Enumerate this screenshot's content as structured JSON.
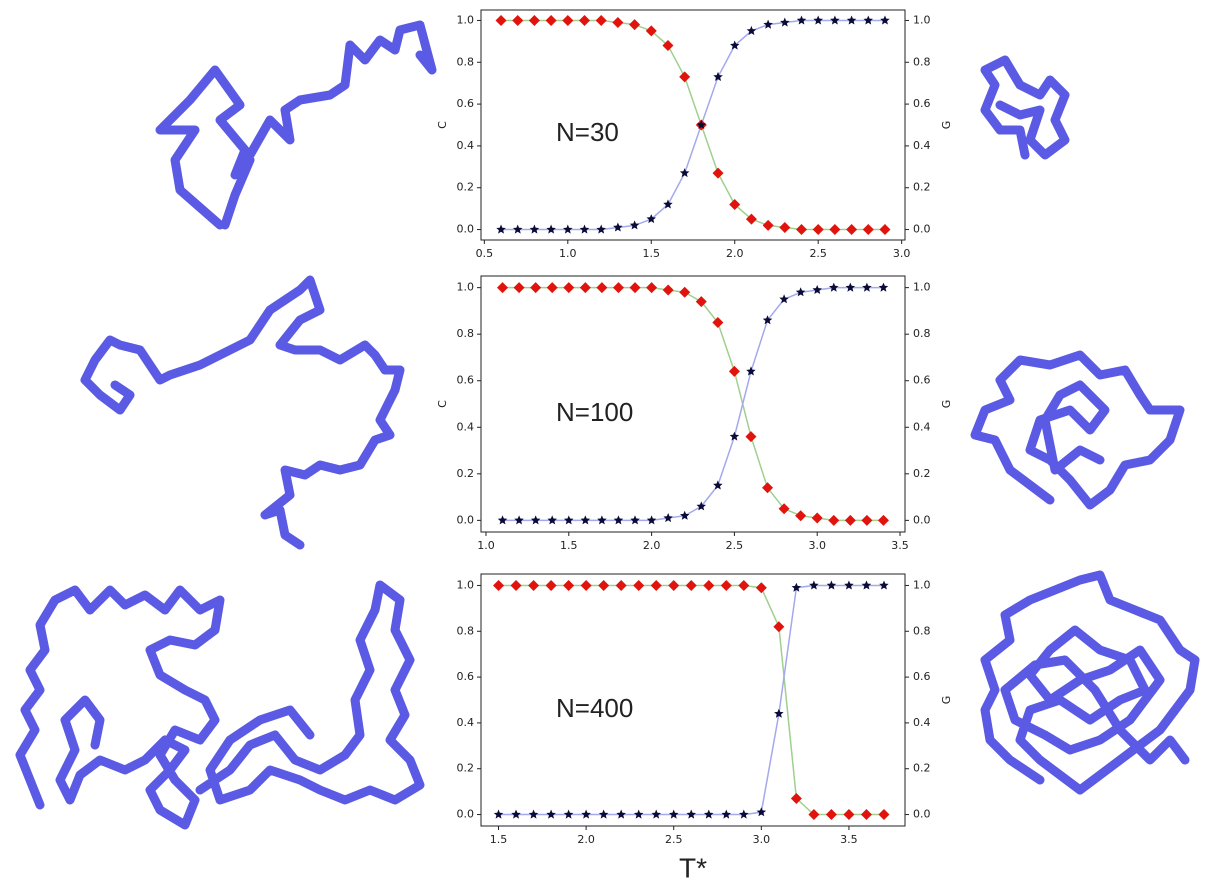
{
  "chart_data": [
    {
      "type": "line",
      "annotation": "N=30",
      "ylabel": "C",
      "y2label": "G",
      "x": [
        0.6,
        0.7,
        0.8,
        0.9,
        1.0,
        1.1,
        1.2,
        1.3,
        1.4,
        1.5,
        1.6,
        1.7,
        1.8,
        1.9,
        2.0,
        2.1,
        2.2,
        2.3,
        2.4,
        2.5,
        2.6,
        2.7,
        2.8,
        2.9
      ],
      "series": [
        {
          "name": "C",
          "color": "#e0140c",
          "line_color": "#9fd08f",
          "marker": "diamond",
          "axis": "y",
          "values": [
            1.0,
            1.0,
            1.0,
            1.0,
            1.0,
            1.0,
            1.0,
            0.99,
            0.98,
            0.95,
            0.88,
            0.73,
            0.5,
            0.27,
            0.12,
            0.05,
            0.02,
            0.01,
            0.0,
            0.0,
            0.0,
            0.0,
            0.0,
            0.0
          ]
        },
        {
          "name": "G",
          "color": "#0b0b38",
          "line_color": "#a3a9ec",
          "marker": "star",
          "axis": "y2",
          "values": [
            0.0,
            0.0,
            0.0,
            0.0,
            0.0,
            0.0,
            0.0,
            0.01,
            0.02,
            0.05,
            0.12,
            0.27,
            0.5,
            0.73,
            0.88,
            0.95,
            0.98,
            0.99,
            1.0,
            1.0,
            1.0,
            1.0,
            1.0,
            1.0
          ]
        }
      ],
      "xlim": [
        0.48,
        3.02
      ],
      "xticks": [
        0.5,
        {
          "value": 1,
          "label": "1.0"
        },
        1.5,
        {
          "value": 2,
          "label": "2.0"
        },
        2.5,
        {
          "value": 3,
          "label": "3.0"
        }
      ],
      "ylim": [
        -0.05,
        1.05
      ],
      "yticks": [
        {
          "value": 0,
          "label": "0.0"
        },
        0.2,
        0.4,
        0.6,
        0.8,
        {
          "value": 1,
          "label": "1.0"
        }
      ],
      "y2lim": [
        -0.05,
        1.05
      ],
      "y2ticks": [
        {
          "value": 0,
          "label": "0.0"
        },
        0.2,
        0.4,
        0.6,
        0.8,
        {
          "value": 1,
          "label": "1.0"
        }
      ]
    },
    {
      "type": "line",
      "annotation": "N=100",
      "ylabel": "C",
      "y2label": "G",
      "x": [
        1.1,
        1.2,
        1.3,
        1.4,
        1.5,
        1.6,
        1.7,
        1.8,
        1.9,
        2.0,
        2.1,
        2.2,
        2.3,
        2.4,
        2.5,
        2.6,
        2.7,
        2.8,
        2.9,
        3.0,
        3.1,
        3.2,
        3.3,
        3.4
      ],
      "series": [
        {
          "name": "C",
          "color": "#e0140c",
          "line_color": "#9fd08f",
          "marker": "diamond",
          "axis": "y",
          "values": [
            1.0,
            1.0,
            1.0,
            1.0,
            1.0,
            1.0,
            1.0,
            1.0,
            1.0,
            1.0,
            0.99,
            0.98,
            0.94,
            0.85,
            0.64,
            0.36,
            0.14,
            0.05,
            0.02,
            0.01,
            0.0,
            0.0,
            0.0,
            0.0
          ]
        },
        {
          "name": "G",
          "color": "#0b0b38",
          "line_color": "#a3a9ec",
          "marker": "star",
          "axis": "y2",
          "values": [
            0.0,
            0.0,
            0.0,
            0.0,
            0.0,
            0.0,
            0.0,
            0.0,
            0.0,
            0.0,
            0.01,
            0.02,
            0.06,
            0.15,
            0.36,
            0.64,
            0.86,
            0.95,
            0.98,
            0.99,
            1.0,
            1.0,
            1.0,
            1.0
          ]
        }
      ],
      "xlim": [
        0.97,
        3.53
      ],
      "xticks": [
        {
          "value": 1,
          "label": "1.0"
        },
        1.5,
        {
          "value": 2,
          "label": "2.0"
        },
        2.5,
        {
          "value": 3,
          "label": "3.0"
        },
        3.5
      ],
      "ylim": [
        -0.05,
        1.05
      ],
      "yticks": [
        {
          "value": 0,
          "label": "0.0"
        },
        0.2,
        0.4,
        0.6,
        0.8,
        {
          "value": 1,
          "label": "1.0"
        }
      ],
      "y2lim": [
        -0.05,
        1.05
      ],
      "y2ticks": [
        {
          "value": 0,
          "label": "0.0"
        },
        0.2,
        0.4,
        0.6,
        0.8,
        {
          "value": 1,
          "label": "1.0"
        }
      ]
    },
    {
      "type": "line",
      "annotation": "N=400",
      "y2label": "G",
      "xlabel": "T*",
      "x": [
        1.5,
        1.6,
        1.7,
        1.8,
        1.9,
        2.0,
        2.1,
        2.2,
        2.3,
        2.4,
        2.5,
        2.6,
        2.7,
        2.8,
        2.9,
        3.0,
        3.1,
        3.2,
        3.3,
        3.4,
        3.5,
        3.6,
        3.7
      ],
      "series": [
        {
          "name": "C",
          "color": "#e0140c",
          "line_color": "#9fd08f",
          "marker": "diamond",
          "axis": "y",
          "values": [
            1.0,
            1.0,
            1.0,
            1.0,
            1.0,
            1.0,
            1.0,
            1.0,
            1.0,
            1.0,
            1.0,
            1.0,
            1.0,
            1.0,
            1.0,
            0.99,
            0.82,
            0.07,
            0.0,
            0.0,
            0.0,
            0.0,
            0.0
          ]
        },
        {
          "name": "G",
          "color": "#0b0b38",
          "line_color": "#a3a9ec",
          "marker": "star",
          "axis": "y2",
          "values": [
            0.0,
            0.0,
            0.0,
            0.0,
            0.0,
            0.0,
            0.0,
            0.0,
            0.0,
            0.0,
            0.0,
            0.0,
            0.0,
            0.0,
            0.0,
            0.01,
            0.44,
            0.99,
            1.0,
            1.0,
            1.0,
            1.0,
            1.0
          ]
        }
      ],
      "xlim": [
        1.4,
        3.82
      ],
      "xticks": [
        1.5,
        {
          "value": 2,
          "label": "2.0"
        },
        2.5,
        {
          "value": 3,
          "label": "3.0"
        },
        3.5
      ],
      "ylim": [
        -0.05,
        1.05
      ],
      "yticks": [
        {
          "value": 0,
          "label": "0.0"
        },
        0.2,
        0.4,
        0.6,
        0.8,
        {
          "value": 1,
          "label": "1.0"
        }
      ],
      "y2lim": [
        -0.05,
        1.05
      ],
      "y2ticks": [
        {
          "value": 0,
          "label": "0.0"
        },
        0.2,
        0.4,
        0.6,
        0.8,
        {
          "value": 1,
          "label": "1.0"
        }
      ]
    }
  ]
}
